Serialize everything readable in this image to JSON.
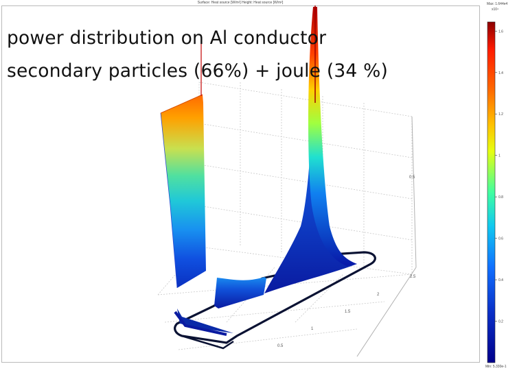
{
  "title": "Surface: Heat source [W/m²]  Height: Heat source [W/m²]",
  "overlay": {
    "line1": "power distribution on Al conductor",
    "line2": "secondary particles (66%) + joule (34 %)"
  },
  "colorbar": {
    "max_label": "Max: 1.644e4",
    "multiplier": "x10⁴",
    "min_label": "Min: 5.330e-1",
    "ticks": [
      "1.6",
      "1.4",
      "1.2",
      "1",
      "0.8",
      "0.6",
      "0.4",
      "0.2"
    ],
    "tick_values": [
      1.6,
      1.4,
      1.2,
      1.0,
      0.8,
      0.6,
      0.4,
      0.2
    ],
    "range": [
      0,
      1.644
    ],
    "colormap": "jet"
  },
  "chart_data": {
    "type": "surface",
    "title": "Surface: Heat source [W/m²]  Height: Heat source [W/m²]",
    "colorscale": "jet",
    "value_range": [
      5.33e-05,
      1.644
    ],
    "value_unit_multiplier": "x10⁴",
    "axis_ticks": {
      "z": [
        "0.5"
      ],
      "y": [
        "2.5",
        "2",
        "1.5",
        "1",
        "0.5"
      ]
    },
    "peaks": [
      {
        "name": "left face",
        "top_value_range": [
          1.27,
          1.32
        ]
      },
      {
        "name": "spike",
        "top_value": 1.644
      }
    ],
    "grid": true
  },
  "colors": {
    "frame": "#b9b9b9",
    "grid": "#c8c8c8",
    "outline": "#0a1233",
    "surface_dark": "#0a1aa0"
  }
}
